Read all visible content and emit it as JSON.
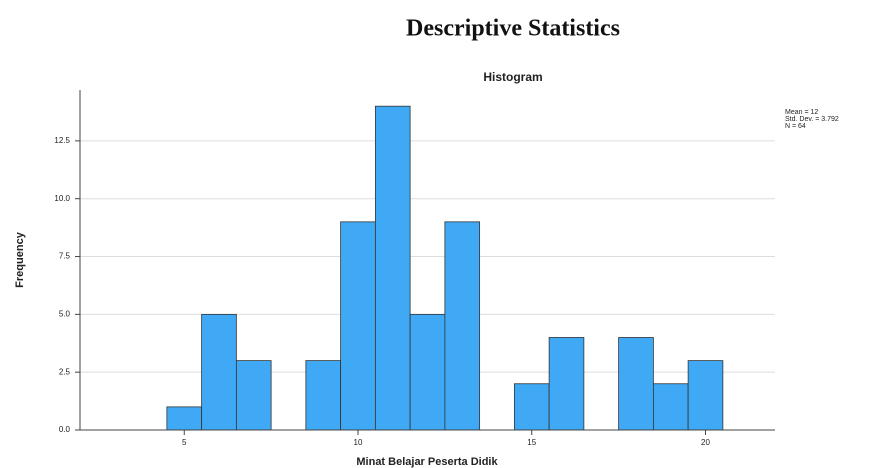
{
  "heading": "Descriptive Statistics",
  "chart_data": {
    "type": "histogram",
    "title": "Histogram",
    "x_label": "Minat Belajar Peserta Didik",
    "y_label": "Frequency",
    "bins": [
      4.5,
      5.5,
      6.5,
      7.5,
      8.5,
      9.5,
      10.5,
      11.5,
      12.5,
      13.5,
      14.5,
      15.5,
      16.5,
      17.5,
      18.5,
      19.5,
      20.5
    ],
    "values": [
      1,
      5,
      3,
      0,
      3,
      9,
      14,
      5,
      9,
      0,
      2,
      4,
      0,
      4,
      2,
      3
    ],
    "color": "#3fa9f5",
    "xlim": [
      2,
      22
    ],
    "xticks": [
      5,
      10,
      15,
      20
    ],
    "ylim": [
      0,
      14.7
    ],
    "yticks": [
      {
        "value": 0,
        "label": "0.0"
      },
      2.5,
      {
        "value": 5,
        "label": "5.0"
      },
      7.5,
      {
        "value": 10,
        "label": "10.0"
      },
      12.5
    ],
    "grid": true,
    "annotations": [
      "Mean = 12",
      "Std. Dev. = 3.792",
      "N = 64"
    ]
  }
}
